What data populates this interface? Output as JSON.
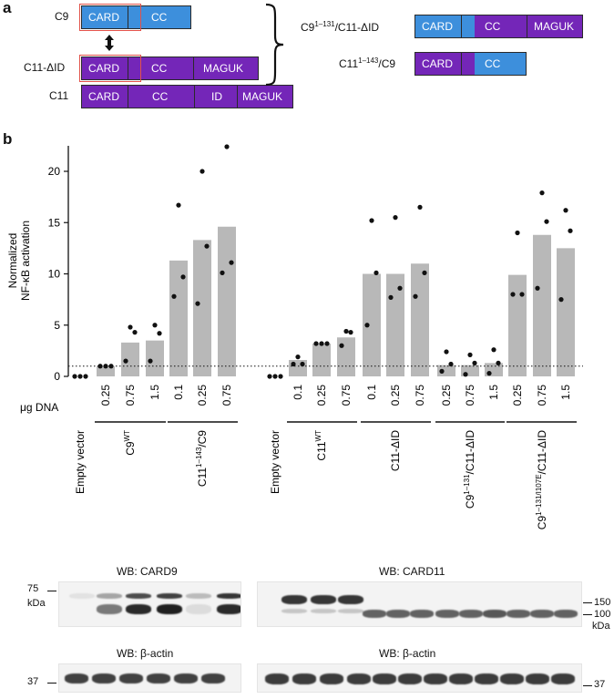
{
  "panel_a": {
    "letter": "a",
    "rows": [
      {
        "label": "C9",
        "domains": [
          "CARD",
          "CC"
        ]
      },
      {
        "label": "C11-ΔID",
        "domains": [
          "CARD",
          "CC",
          "MAGUK"
        ]
      },
      {
        "label": "C11",
        "domains": [
          "CARD",
          "CC",
          "ID",
          "MAGUK"
        ]
      }
    ],
    "chimeras": [
      {
        "label_base": "C9",
        "label_sup": "1–131",
        "label_tail": "/C11-ΔID",
        "domains": [
          "CARD",
          "CC",
          "MAGUK"
        ]
      },
      {
        "label_base": "C11",
        "label_sup": "1–143",
        "label_tail": "/C9",
        "domains": [
          "CARD",
          "CC"
        ]
      }
    ],
    "colors": {
      "card9": "#3d8fdc",
      "card11": "#7426b8",
      "highlight": "#e2524a"
    }
  },
  "panel_b": {
    "letter": "b"
  },
  "chart_data": {
    "type": "bar",
    "ylabel_line1": "Normalized",
    "ylabel_line2": "NF-κB activation",
    "ylim": [
      0,
      22.5
    ],
    "yticks": [
      0,
      5,
      10,
      15,
      20
    ],
    "baseline": 1,
    "bar_color": "#b8b8b8",
    "dna_label": "μg DNA",
    "dose_labels": [
      "",
      "0.25",
      "0.75",
      "1.5",
      "0.1",
      "0.25",
      "0.75",
      "",
      "0.1",
      "0.25",
      "0.75",
      "0.1",
      "0.25",
      "0.75",
      "0.25",
      "0.75",
      "1.5",
      "0.25",
      "0.75",
      "1.5"
    ],
    "values": [
      0,
      1.0,
      3.3,
      3.5,
      11.3,
      13.3,
      14.6,
      0,
      1.6,
      3.2,
      3.8,
      10.0,
      10.0,
      11.0,
      1.1,
      1.1,
      1.3,
      9.9,
      13.8,
      12.5
    ],
    "points": [
      [
        0,
        0,
        0
      ],
      [
        1,
        1,
        1
      ],
      [
        4.8,
        4.3,
        1.5
      ],
      [
        5.0,
        4.2,
        1.5
      ],
      [
        16.7,
        9.7,
        7.8
      ],
      [
        20.0,
        12.7,
        7.1
      ],
      [
        22.4,
        11.1,
        10.1
      ],
      [
        0,
        0,
        0
      ],
      [
        1.9,
        1.2,
        1.2
      ],
      [
        3.2,
        3.2,
        3.2
      ],
      [
        4.4,
        4.3,
        3.0
      ],
      [
        15.2,
        10.1,
        5.0
      ],
      [
        15.5,
        8.6,
        7.7
      ],
      [
        16.5,
        10.1,
        7.8
      ],
      [
        2.4,
        1.2,
        0.5
      ],
      [
        2.1,
        1.3,
        0.2
      ],
      [
        2.6,
        1.3,
        0.3
      ],
      [
        14.0,
        8.0,
        8.0
      ],
      [
        17.9,
        15.1,
        8.6
      ],
      [
        16.2,
        14.2,
        7.5
      ]
    ],
    "groups": [
      {
        "base": "Empty vector",
        "sup": "",
        "tail": ""
      },
      {
        "base": "C9",
        "sup": "WT",
        "tail": ""
      },
      {
        "base": "C11",
        "sup": "1–143",
        "tail": "/C9"
      },
      {
        "base": "Empty vector",
        "sup": "",
        "tail": ""
      },
      {
        "base": "C11",
        "sup": "WT",
        "tail": ""
      },
      {
        "base": "C11-ΔID",
        "sup": "",
        "tail": ""
      },
      {
        "base": "C9",
        "sup": "1–131",
        "tail": "/C11-ΔID"
      },
      {
        "base": "C9",
        "sup": "1–131/I107E",
        "tail": "/C11-ΔID"
      }
    ]
  },
  "western_blots": {
    "card9": {
      "title": "WB: CARD9",
      "marker_75": "75",
      "kda": "kDa"
    },
    "card11": {
      "title": "WB: CARD11",
      "marker_150": "150",
      "marker_100": "100",
      "kda": "kDa"
    },
    "actin_left": {
      "title": "WB: β-actin",
      "marker_37": "37"
    },
    "actin_right": {
      "title": "WB: β-actin",
      "marker_37": "37"
    }
  }
}
